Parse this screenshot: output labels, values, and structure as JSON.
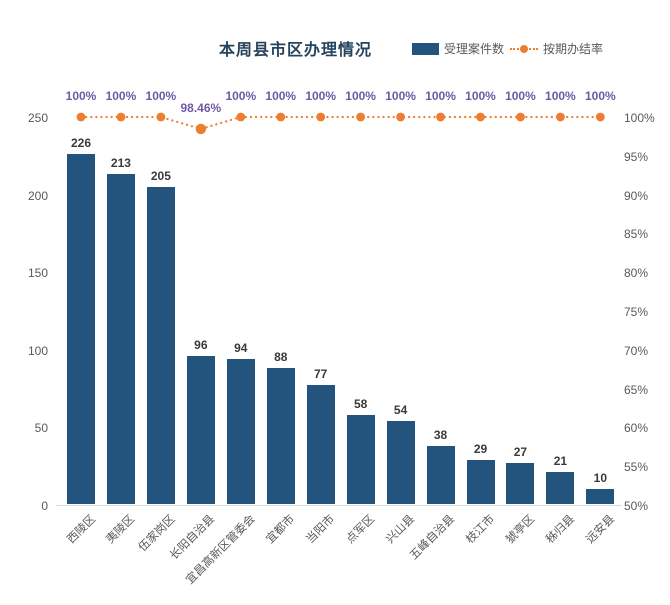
{
  "header": {
    "title": "本周县市区办理情况"
  },
  "chart_data": {
    "type": "bar",
    "title": "本周县市区办理情况",
    "categories": [
      "西陵区",
      "夷陵区",
      "伍家岗区",
      "长阳自治县",
      "宜昌高新区管委会",
      "宜都市",
      "当阳市",
      "点军区",
      "兴山县",
      "五峰自治县",
      "枝江市",
      "猇亭区",
      "秭归县",
      "远安县"
    ],
    "series": [
      {
        "name": "受理案件数",
        "type": "bar",
        "axis": "left",
        "values": [
          226,
          213,
          205,
          96,
          94,
          88,
          77,
          58,
          54,
          38,
          29,
          27,
          21,
          10
        ]
      },
      {
        "name": "按期办结率",
        "type": "line",
        "axis": "right",
        "values": [
          100,
          100,
          100,
          98.46,
          100,
          100,
          100,
          100,
          100,
          100,
          100,
          100,
          100,
          100
        ],
        "labels": [
          "100%",
          "100%",
          "100%",
          "98.46%",
          "100%",
          "100%",
          "100%",
          "100%",
          "100%",
          "100%",
          "100%",
          "100%",
          "100%",
          "100%"
        ]
      }
    ],
    "left_axis": {
      "min": 0,
      "max": 250,
      "ticks": [
        0,
        50,
        100,
        150,
        200,
        250
      ]
    },
    "right_axis": {
      "min": 50,
      "max": 100,
      "ticks": [
        "50%",
        "55%",
        "60%",
        "65%",
        "70%",
        "75%",
        "80%",
        "85%",
        "90%",
        "95%",
        "100%"
      ]
    },
    "legend_position": "top-right",
    "grid": false,
    "colors": {
      "bar": "#23547E",
      "line": "#ED7D31",
      "percent_label": "#6E59A5",
      "value_label": "#3A3A3A",
      "axis_text": "#595959",
      "axis_line": "#D9D9D9",
      "title": "#26435E"
    }
  }
}
